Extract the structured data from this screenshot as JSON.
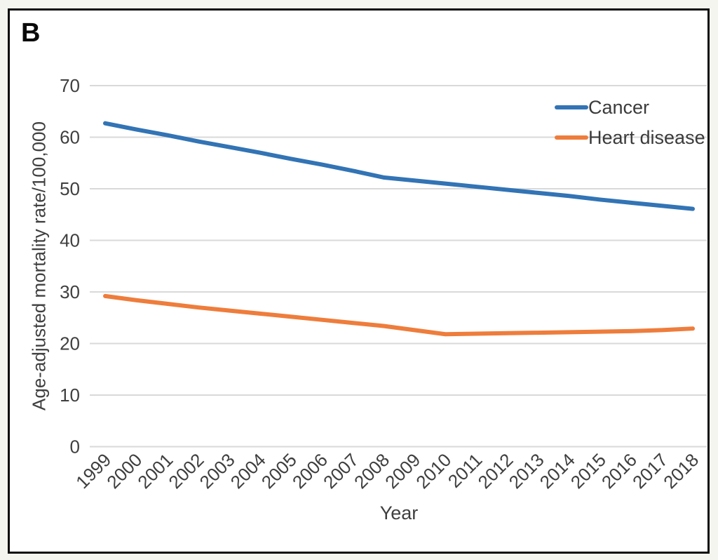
{
  "chart_data": {
    "type": "line",
    "panel_label": "B",
    "xlabel": "Year",
    "ylabel": "Age-adjusted mortality rate/100,000",
    "x": [
      "1999",
      "2000",
      "2001",
      "2002",
      "2003",
      "2004",
      "2005",
      "2006",
      "2007",
      "2008",
      "2009",
      "2010",
      "2011",
      "2012",
      "2013",
      "2014",
      "2015",
      "2016",
      "2017",
      "2018"
    ],
    "series": [
      {
        "name": "Cancer",
        "color": "#3274b5",
        "values": [
          62.7,
          61.5,
          60.4,
          59.2,
          58.1,
          57.0,
          55.8,
          54.7,
          53.5,
          52.2,
          51.6,
          51.0,
          50.4,
          49.8,
          49.2,
          48.6,
          47.9,
          47.3,
          46.7,
          46.1
        ]
      },
      {
        "name": "Heart disease",
        "color": "#ee7d3c",
        "values": [
          29.2,
          28.4,
          27.7,
          27.0,
          26.4,
          25.8,
          25.2,
          24.6,
          24.0,
          23.4,
          22.6,
          21.8,
          21.9,
          22.0,
          22.1,
          22.2,
          22.3,
          22.4,
          22.6,
          22.9
        ]
      }
    ],
    "yticks": [
      0,
      10,
      20,
      30,
      40,
      50,
      60,
      70
    ],
    "ylim": [
      0,
      70
    ],
    "grid": true,
    "legend_position": "top-right",
    "style": {
      "grid_color": "#d9d9d9",
      "tick_color": "#3f3f3f",
      "frame_border_color": "#0d0d0d",
      "plot_background": "#ffffff"
    }
  }
}
